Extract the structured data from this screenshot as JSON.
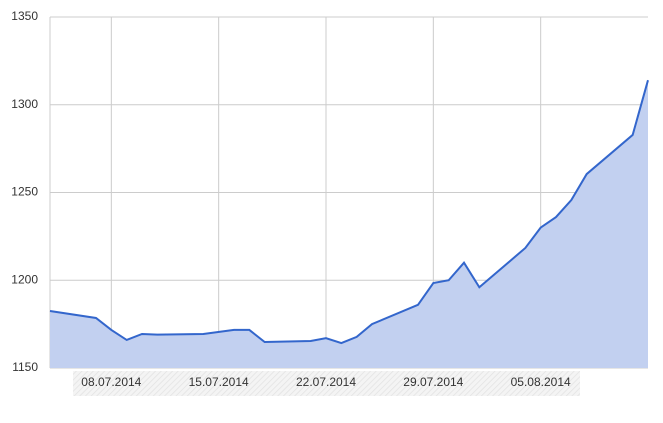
{
  "chart_data": {
    "type": "area",
    "x": [
      "2014-07-04",
      "2014-07-07",
      "2014-07-08",
      "2014-07-09",
      "2014-07-10",
      "2014-07-11",
      "2014-07-14",
      "2014-07-16",
      "2014-07-17",
      "2014-07-18",
      "2014-07-21",
      "2014-07-22",
      "2014-07-23",
      "2014-07-24",
      "2014-07-25",
      "2014-07-28",
      "2014-07-29",
      "2014-07-30",
      "2014-07-31",
      "2014-08-01",
      "2014-08-04",
      "2014-08-05",
      "2014-08-06",
      "2014-08-07",
      "2014-08-08",
      "2014-08-11",
      "2014-08-12"
    ],
    "values": [
      1182.5,
      1178.5,
      1171.7,
      1166,
      1169.4,
      1169,
      1169.4,
      1171.7,
      1171.7,
      1164.8,
      1165.4,
      1167,
      1164.2,
      1167.7,
      1175,
      1186,
      1198.4,
      1200,
      1210,
      1196,
      1218.4,
      1230,
      1236,
      1245.7,
      1260.5,
      1282.8,
      1314
    ],
    "color": "#3366cc",
    "fill": "#c2d0f0",
    "xlim": [
      "2014-07-04",
      "2014-08-12"
    ],
    "xticks": [
      {
        "value": "2014-07-08",
        "label": "08.07.2014"
      },
      {
        "value": "2014-07-15",
        "label": "15.07.2014"
      },
      {
        "value": "2014-07-22",
        "label": "22.07.2014"
      },
      {
        "value": "2014-07-29",
        "label": "29.07.2014"
      },
      {
        "value": "2014-08-05",
        "label": "05.08.2014"
      }
    ],
    "ylim": [
      1150,
      1350
    ],
    "yticks": [
      1150,
      1200,
      1250,
      1300,
      1350
    ],
    "grid": true
  }
}
